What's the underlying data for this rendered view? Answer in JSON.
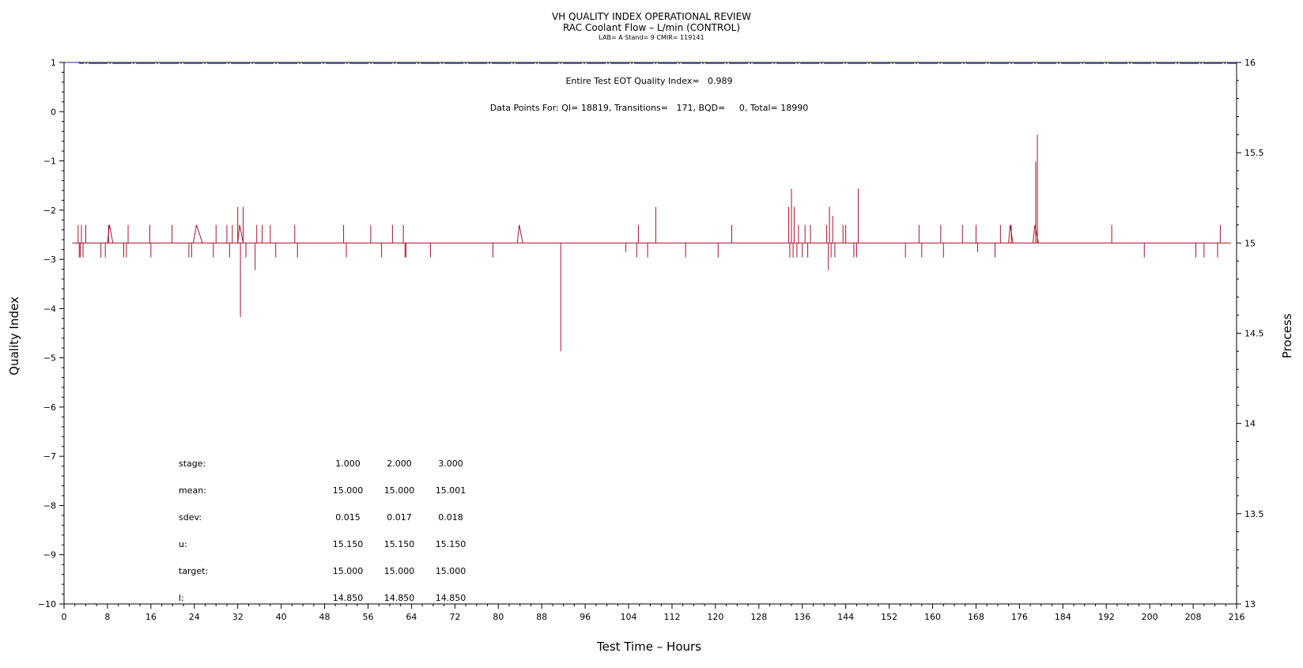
{
  "header": {
    "title": "VH QUALITY INDEX OPERATIONAL REVIEW",
    "subtitle": "RAC Coolant Flow – L/min (CONTROL)",
    "lab_line": "LAB= A Stand= 9 CMIR= 119141"
  },
  "annotations": {
    "eot": "Entire Test EOT Quality Index=   0.989",
    "data_points": "Data Points For: QI= 18819, Transitions=   171, BQD=     0, Total= 18990"
  },
  "colors": {
    "process": "#a5122a",
    "qi": "#2a2aa8",
    "axis": "#000000"
  },
  "chart_data": {
    "type": "line",
    "xlabel": "Test Time – Hours",
    "ylabel": "Quality Index",
    "y2label": "Process",
    "xlim": [
      0,
      216
    ],
    "ylim": [
      -10,
      1
    ],
    "y2lim": [
      13,
      16
    ],
    "xticks": [
      0,
      8,
      16,
      24,
      32,
      40,
      48,
      56,
      64,
      72,
      80,
      88,
      96,
      104,
      112,
      120,
      128,
      136,
      144,
      152,
      160,
      168,
      176,
      184,
      192,
      200,
      208,
      216
    ],
    "yticks": [
      1,
      0,
      -1,
      -2,
      -3,
      -4,
      -5,
      -6,
      -7,
      -8,
      -9,
      -10
    ],
    "y2ticks": [
      16,
      15.5,
      15,
      14.5,
      14,
      13.5,
      13
    ],
    "y2tick_labels": [
      "16",
      "15.5",
      "15",
      "14.5",
      "14",
      "13.5",
      "13"
    ],
    "series": [
      {
        "role": "qi",
        "axis": "left",
        "style": "dash-dot",
        "points": [
          [
            0.2,
            1.0
          ],
          [
            2.5,
            1.0
          ],
          [
            3.0,
            0.98
          ],
          [
            216,
            0.98
          ]
        ]
      },
      {
        "role": "process",
        "axis": "right",
        "baseline": 15.0,
        "start": 1.5,
        "end": 215,
        "spikes": [
          [
            2.6,
            15.1
          ],
          [
            2.8,
            14.92
          ],
          [
            3.0,
            14.92
          ],
          [
            3.2,
            15.1
          ],
          [
            3.5,
            14.92
          ],
          [
            4.0,
            15.1
          ],
          [
            6.8,
            14.92
          ],
          [
            7.6,
            14.92
          ],
          [
            8.2,
            15.1
          ],
          [
            11.0,
            14.92
          ],
          [
            11.5,
            14.92
          ],
          [
            11.8,
            15.1
          ],
          [
            15.8,
            15.1
          ],
          [
            16.0,
            14.92
          ],
          [
            19.9,
            15.1
          ],
          [
            23.0,
            14.92
          ],
          [
            23.5,
            14.92
          ],
          [
            27.5,
            14.92
          ],
          [
            28.0,
            15.1
          ],
          [
            30.0,
            15.1
          ],
          [
            30.5,
            14.92
          ],
          [
            31.0,
            15.1
          ],
          [
            32.0,
            15.2
          ],
          [
            32.5,
            14.59
          ],
          [
            33.0,
            15.2
          ],
          [
            33.5,
            14.92
          ],
          [
            35.2,
            14.85
          ],
          [
            35.5,
            15.1
          ],
          [
            36.5,
            15.1
          ],
          [
            38.0,
            15.1
          ],
          [
            39.0,
            14.92
          ],
          [
            42.5,
            15.1
          ],
          [
            43.0,
            14.92
          ],
          [
            51.5,
            15.1
          ],
          [
            52.0,
            14.92
          ],
          [
            56.5,
            15.1
          ],
          [
            58.5,
            14.92
          ],
          [
            60.5,
            15.1
          ],
          [
            62.5,
            15.1
          ],
          [
            62.8,
            14.92
          ],
          [
            63.0,
            14.92
          ],
          [
            67.5,
            14.92
          ],
          [
            79.0,
            14.92
          ],
          [
            91.5,
            14.4
          ],
          [
            103.5,
            14.95
          ],
          [
            105.5,
            14.92
          ],
          [
            105.8,
            15.1
          ],
          [
            107.5,
            14.92
          ],
          [
            109.0,
            15.2
          ],
          [
            114.5,
            14.92
          ],
          [
            120.5,
            14.92
          ],
          [
            123.0,
            15.1
          ],
          [
            133.5,
            15.2
          ],
          [
            133.7,
            14.92
          ],
          [
            134.0,
            15.3
          ],
          [
            134.3,
            14.92
          ],
          [
            134.5,
            15.2
          ],
          [
            135.0,
            14.92
          ],
          [
            135.3,
            15.1
          ],
          [
            136.0,
            14.92
          ],
          [
            136.5,
            15.1
          ],
          [
            137.0,
            14.92
          ],
          [
            137.5,
            15.1
          ],
          [
            140.5,
            15.1
          ],
          [
            140.8,
            14.85
          ],
          [
            141.0,
            15.2
          ],
          [
            141.3,
            14.92
          ],
          [
            141.6,
            15.15
          ],
          [
            142.0,
            14.92
          ],
          [
            143.5,
            15.1
          ],
          [
            144.0,
            15.1
          ],
          [
            145.5,
            14.92
          ],
          [
            146.0,
            14.92
          ],
          [
            146.3,
            15.3
          ],
          [
            155.0,
            14.92
          ],
          [
            157.5,
            15.1
          ],
          [
            158.0,
            14.92
          ],
          [
            161.5,
            15.1
          ],
          [
            162.0,
            14.92
          ],
          [
            165.5,
            15.1
          ],
          [
            168.0,
            15.1
          ],
          [
            168.3,
            14.95
          ],
          [
            171.5,
            14.92
          ],
          [
            172.5,
            15.1
          ],
          [
            174.5,
            15.1
          ],
          [
            179.0,
            15.45
          ],
          [
            179.3,
            15.6
          ],
          [
            193.0,
            15.1
          ],
          [
            199.0,
            14.92
          ],
          [
            208.5,
            14.92
          ],
          [
            210.0,
            14.92
          ],
          [
            212.5,
            14.92
          ],
          [
            213.0,
            15.1
          ]
        ],
        "bumps": [
          [
            8.0,
            9.0
          ],
          [
            23.8,
            25.5
          ],
          [
            32.0,
            33.0
          ],
          [
            83.5,
            84.5
          ],
          [
            174.0,
            174.8
          ],
          [
            178.5,
            179.5
          ]
        ]
      }
    ]
  },
  "stats": {
    "rows": [
      {
        "label": "stage:",
        "values": [
          "1.000",
          "2.000",
          "3.000"
        ]
      },
      {
        "label": "mean:",
        "values": [
          "15.000",
          "15.000",
          "15.001"
        ]
      },
      {
        "label": "sdev:",
        "values": [
          "0.015",
          "0.017",
          "0.018"
        ]
      },
      {
        "label": "u:",
        "values": [
          "15.150",
          "15.150",
          "15.150"
        ]
      },
      {
        "label": "target:",
        "values": [
          "15.000",
          "15.000",
          "15.000"
        ]
      },
      {
        "label": "l:",
        "values": [
          "14.850",
          "14.850",
          "14.850"
        ]
      }
    ]
  }
}
